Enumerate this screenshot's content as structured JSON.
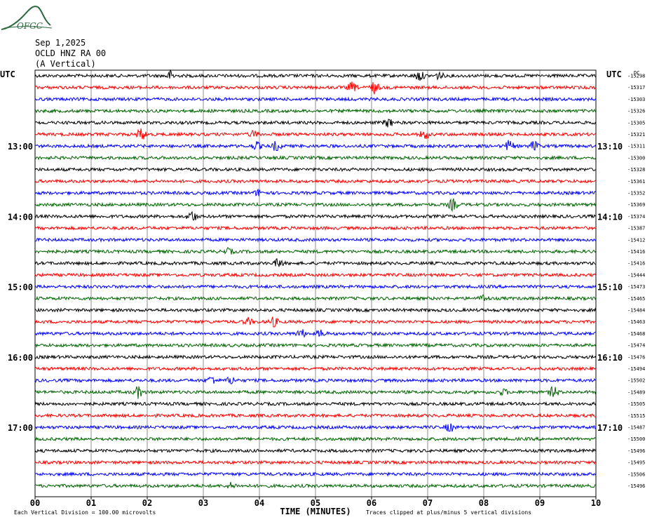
{
  "header": {
    "date": "Sep 1,2025",
    "station": "OCLD HNZ RA 00",
    "component": "(A Vertical)"
  },
  "logo": {
    "text": "OFGC",
    "color": "#2d6a3e"
  },
  "colors": [
    "#000000",
    "#ff0000",
    "#0000ff",
    "#006400"
  ],
  "chart_data": {
    "type": "line",
    "left_axis_label": "UTC",
    "right_axis_label": "UTC",
    "x_ticks": [
      "00",
      "01",
      "02",
      "03",
      "04",
      "05",
      "06",
      "07",
      "08",
      "09",
      "10"
    ],
    "xlim": [
      0,
      10
    ],
    "xlabel": "TIME (MINUTES)",
    "left_time_labels": [
      {
        "row": 6,
        "text": "13:00"
      },
      {
        "row": 12,
        "text": "14:00"
      },
      {
        "row": 18,
        "text": "15:00"
      },
      {
        "row": 24,
        "text": "16:00"
      },
      {
        "row": 30,
        "text": "17:00"
      }
    ],
    "right_time_labels": [
      {
        "row": 6,
        "text": "13:10"
      },
      {
        "row": 12,
        "text": "14:10"
      },
      {
        "row": 18,
        "text": "15:10"
      },
      {
        "row": 24,
        "text": "16:10"
      },
      {
        "row": 30,
        "text": "17:10"
      }
    ],
    "dc_label": "DC",
    "baselines": [
      "-15298",
      "-15317",
      "-15303",
      "-15326",
      "-15305",
      "-15321",
      "-15311",
      "-15300",
      "-15328",
      "-15361",
      "-15352",
      "-15369",
      "-15374",
      "-15387",
      "-15412",
      "-15416",
      "-15416",
      "-15444",
      "-15473",
      "-15465",
      "-15484",
      "-15463",
      "-15468",
      "-15474",
      "-15476",
      "-15494",
      "-15502",
      "-15489",
      "-15505",
      "-15515",
      "-15487",
      "-15500",
      "-15496",
      "-15495",
      "-15506",
      "-15496"
    ],
    "events": [
      {
        "row": 0,
        "x": 2.42,
        "amp": 1.0
      },
      {
        "row": 0,
        "x": 6.85,
        "amp": 1.1
      },
      {
        "row": 0,
        "x": 7.2,
        "amp": 0.7
      },
      {
        "row": 1,
        "x": 5.65,
        "amp": 1.0
      },
      {
        "row": 1,
        "x": 6.05,
        "amp": 1.2
      },
      {
        "row": 4,
        "x": 6.3,
        "amp": 0.9
      },
      {
        "row": 5,
        "x": 1.9,
        "amp": 1.3
      },
      {
        "row": 5,
        "x": 3.9,
        "amp": 0.7
      },
      {
        "row": 5,
        "x": 6.95,
        "amp": 1.0
      },
      {
        "row": 6,
        "x": 3.95,
        "amp": 0.8
      },
      {
        "row": 6,
        "x": 4.3,
        "amp": 1.0
      },
      {
        "row": 6,
        "x": 8.45,
        "amp": 1.1
      },
      {
        "row": 6,
        "x": 8.9,
        "amp": 1.0
      },
      {
        "row": 10,
        "x": 4.0,
        "amp": 0.7
      },
      {
        "row": 11,
        "x": 7.45,
        "amp": 1.2
      },
      {
        "row": 12,
        "x": 2.8,
        "amp": 1.2
      },
      {
        "row": 15,
        "x": 3.45,
        "amp": 0.6
      },
      {
        "row": 16,
        "x": 4.35,
        "amp": 1.0
      },
      {
        "row": 19,
        "x": 8.0,
        "amp": 0.7
      },
      {
        "row": 21,
        "x": 3.8,
        "amp": 0.7
      },
      {
        "row": 21,
        "x": 4.25,
        "amp": 1.0
      },
      {
        "row": 22,
        "x": 4.75,
        "amp": 0.8
      },
      {
        "row": 22,
        "x": 5.1,
        "amp": 0.7
      },
      {
        "row": 26,
        "x": 3.15,
        "amp": 0.9
      },
      {
        "row": 26,
        "x": 3.5,
        "amp": 0.8
      },
      {
        "row": 27,
        "x": 1.85,
        "amp": 1.3
      },
      {
        "row": 27,
        "x": 8.35,
        "amp": 0.6
      },
      {
        "row": 27,
        "x": 9.25,
        "amp": 1.2
      },
      {
        "row": 30,
        "x": 7.4,
        "amp": 0.9
      },
      {
        "row": 35,
        "x": 3.5,
        "amp": 0.6
      }
    ]
  },
  "footer": {
    "vertical_division": "Each Vertical Division =  100.00 microvolts",
    "clip_note": "Traces clipped at plus/minus 5 vertical divisions"
  }
}
